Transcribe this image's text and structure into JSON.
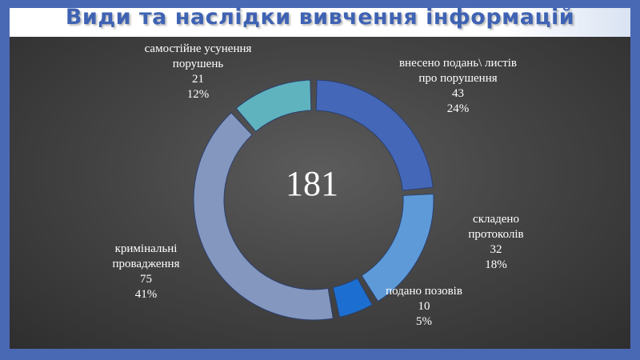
{
  "title": "Види та наслідки вивчення інформацій",
  "chart_data": {
    "type": "pie",
    "variant": "doughnut",
    "total_label": "181",
    "slices": [
      {
        "label": "внесено подань\\ листів про порушення",
        "value": 43,
        "percent": "24%",
        "color": "#4467b8"
      },
      {
        "label": "складено протоколів",
        "value": 32,
        "percent": "18%",
        "color": "#5e9ad8"
      },
      {
        "label": "подано позовів",
        "value": 10,
        "percent": "5%",
        "color": "#1c6fd0"
      },
      {
        "label": "кримінальні провадження",
        "value": 75,
        "percent": "41%",
        "color": "#8497bf"
      },
      {
        "label": "самостійне усунення порушень",
        "value": 21,
        "percent": "12%",
        "color": "#5fb3bf"
      }
    ]
  }
}
